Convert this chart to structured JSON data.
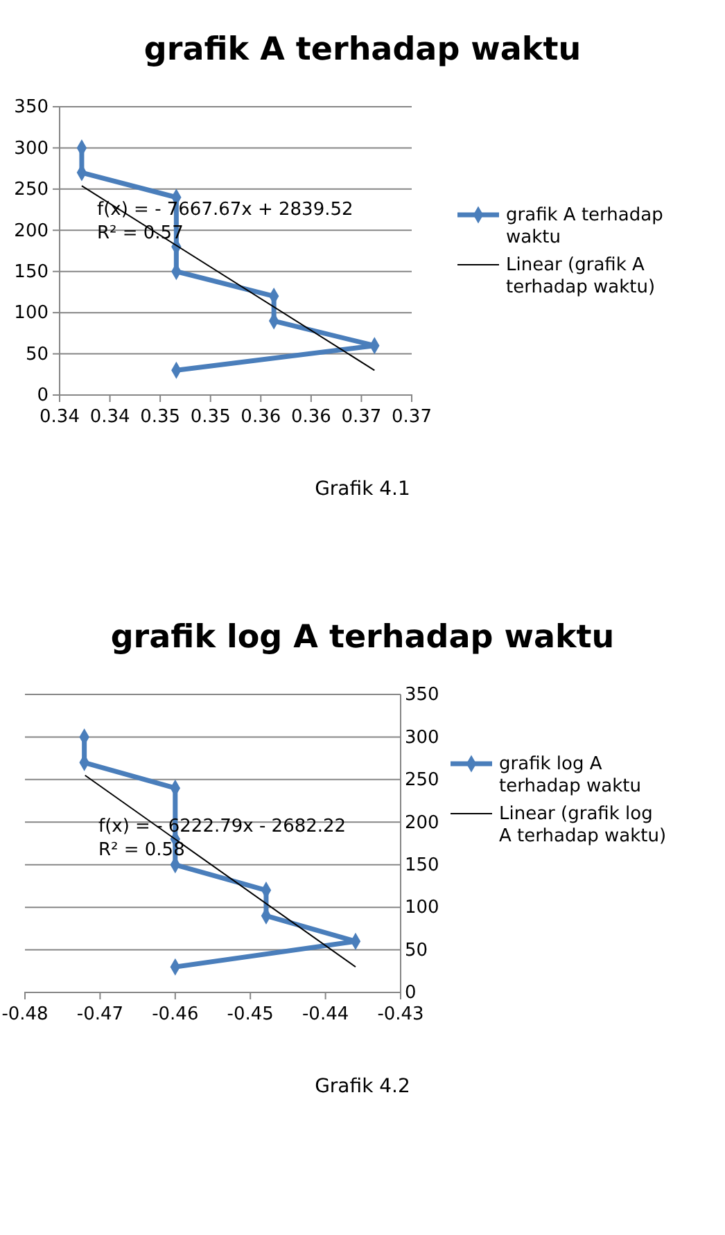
{
  "chart_data": [
    {
      "type": "line",
      "title": "grafik A terhadap waktu",
      "xlim": [
        0.34,
        0.375
      ],
      "xticks": [
        {
          "value": 0.34,
          "label": "0.34"
        },
        {
          "value": 0.345,
          "label": "0.34"
        },
        {
          "value": 0.35,
          "label": "0.35"
        },
        {
          "value": 0.355,
          "label": "0.35"
        },
        {
          "value": 0.36,
          "label": "0.36"
        },
        {
          "value": 0.365,
          "label": "0.36"
        },
        {
          "value": 0.37,
          "label": "0.37"
        },
        {
          "value": 0.375,
          "label": "0.37"
        }
      ],
      "ylim": [
        0,
        350
      ],
      "yticks": [
        0,
        50,
        100,
        150,
        200,
        250,
        300,
        350
      ],
      "grid": "y",
      "legend": "right",
      "series": [
        {
          "name": "grafik A terhadap waktu",
          "color": "#4a7ebb",
          "marker": "diamond",
          "x": [
            0.3422,
            0.3422,
            0.3516,
            0.3516,
            0.3516,
            0.3613,
            0.3613,
            0.3713,
            0.3516
          ],
          "values": [
            300,
            270,
            240,
            180,
            150,
            120,
            90,
            60,
            30
          ]
        },
        {
          "name": "Linear (grafik A terhadap waktu)",
          "color": "#000000",
          "marker": "none",
          "x": [
            0.3422,
            0.3713
          ],
          "values": [
            254,
            30
          ]
        }
      ],
      "annotations": [
        "f(x) =  - 7667.67x + 2839.52",
        "R² = 0.57",
        "Grafik 4.1"
      ]
    },
    {
      "type": "line",
      "title": "grafik log A terhadap waktu",
      "xlim": [
        -0.48,
        -0.43
      ],
      "xticks": [
        -0.48,
        -0.47,
        -0.46,
        -0.45,
        -0.44,
        -0.43
      ],
      "ylim": [
        0,
        350
      ],
      "yticks": [
        0,
        50,
        100,
        150,
        200,
        250,
        300,
        350
      ],
      "grid": "y",
      "legend": "right",
      "series": [
        {
          "name": "grafik log A terhadap waktu",
          "color": "#4a7ebb",
          "marker": "diamond",
          "x": [
            -0.4721,
            -0.4721,
            -0.46,
            -0.46,
            -0.46,
            -0.4479,
            -0.4479,
            -0.436,
            -0.46
          ],
          "values": [
            300,
            270,
            240,
            180,
            150,
            120,
            90,
            60,
            30
          ]
        },
        {
          "name": "Linear (grafik log A terhadap waktu)",
          "color": "#000000",
          "marker": "none",
          "x": [
            -0.472,
            -0.436
          ],
          "values": [
            255,
            30
          ]
        }
      ],
      "annotations": [
        "f(x) =  - 6222.79x - 2682.22",
        "R² = 0.58",
        "Grafik 4.2"
      ]
    }
  ]
}
